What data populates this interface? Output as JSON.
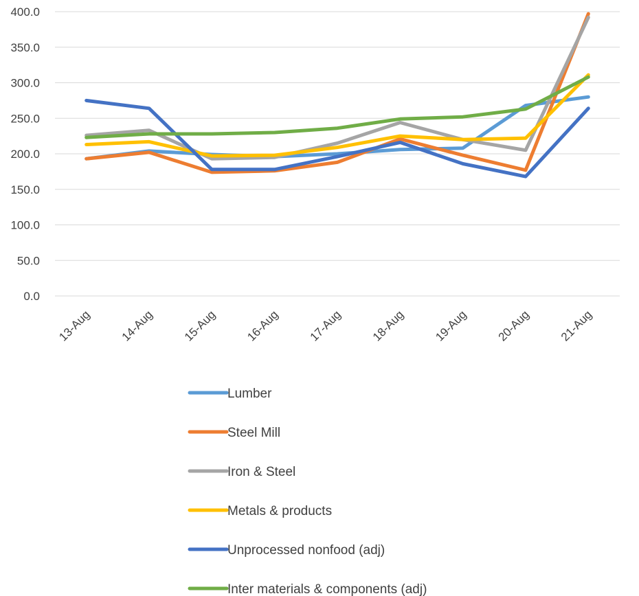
{
  "chart_data": {
    "type": "line",
    "title": "",
    "xlabel": "",
    "ylabel": "",
    "categories": [
      "13-Aug",
      "14-Aug",
      "15-Aug",
      "16-Aug",
      "17-Aug",
      "18-Aug",
      "19-Aug",
      "20-Aug",
      "21-Aug"
    ],
    "ylim": [
      0,
      400
    ],
    "yticks": [
      "0.0",
      "50.0",
      "100.0",
      "150.0",
      "200.0",
      "250.0",
      "300.0",
      "350.0",
      "400.0"
    ],
    "grid": true,
    "legend_position": "bottom",
    "series": [
      {
        "name": "Lumber",
        "color": "#5B9BD5",
        "values": [
          193,
          204,
          199,
          196,
          200,
          206,
          208,
          268,
          280
        ]
      },
      {
        "name": "Steel Mill",
        "color": "#ED7D31",
        "values": [
          193,
          202,
          174,
          176,
          188,
          221,
          198,
          177,
          397
        ]
      },
      {
        "name": "Iron & Steel",
        "color": "#A5A5A5",
        "values": [
          226,
          233,
          193,
          195,
          215,
          244,
          220,
          205,
          392
        ]
      },
      {
        "name": "Metals & products",
        "color": "#FFC000",
        "values": [
          213,
          217,
          197,
          198,
          209,
          225,
          220,
          222,
          311
        ]
      },
      {
        "name": "Unprocessed nonfood (adj)",
        "color": "#4472C4",
        "values": [
          275,
          264,
          178,
          178,
          196,
          216,
          186,
          168,
          264
        ]
      },
      {
        "name": "Inter materials & components (adj)",
        "color": "#70AD47",
        "values": [
          223,
          228,
          228,
          230,
          236,
          249,
          252,
          263,
          308
        ]
      }
    ]
  }
}
